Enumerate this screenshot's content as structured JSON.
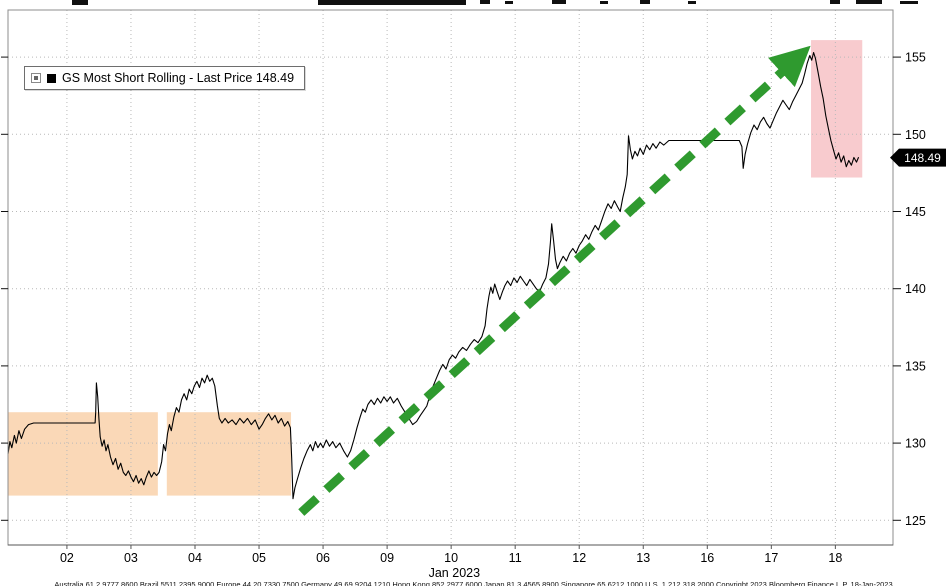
{
  "legend": {
    "text": "GS Most Short Rolling - Last Price 148.49",
    "swatch_color": "#000000"
  },
  "footer": {
    "text": "Australia 61 2 9777 8600 Brazil 5511 2395 9000 Europe 44 20 7330 7500 Germany 49 69 9204 1210 Hong Kong 852 2977 6000 Japan 81 3 4565 8900 Singapore 65 6212 1000 U.S. 1 212 318 2000 Copyright 2023 Bloomberg Finance L.P. 18-Jan-2023"
  },
  "chart_data": {
    "type": "line",
    "title": "GS Most Short Rolling - Last Price 148.49",
    "last_price": 148.49,
    "x_axis": {
      "label": "Jan 2023",
      "ticks": [
        "02",
        "03",
        "04",
        "05",
        "06",
        "09",
        "10",
        "11",
        "12",
        "13",
        "16",
        "17",
        "18"
      ]
    },
    "y_axis": {
      "side": "right",
      "ticks": [
        125,
        130,
        135,
        140,
        145,
        150,
        155
      ]
    },
    "layout": {
      "xlim": [
        -0.92,
        12.9
      ],
      "ylim": [
        123.4,
        158.05
      ],
      "grid": "dotted",
      "legend_position": "top-left",
      "background": "#ffffff"
    },
    "series": [
      {
        "name": "GS Most Short Rolling",
        "color": "#000000",
        "points": [
          [
            -0.92,
            129.3
          ],
          [
            -0.89,
            130.1
          ],
          [
            -0.86,
            129.7
          ],
          [
            -0.82,
            130.5
          ],
          [
            -0.79,
            130.0
          ],
          [
            -0.75,
            130.8
          ],
          [
            -0.71,
            130.3
          ],
          [
            -0.66,
            130.9
          ],
          [
            -0.6,
            131.2
          ],
          [
            -0.52,
            131.3
          ],
          [
            0.44,
            131.3
          ],
          [
            0.45,
            132.0
          ],
          [
            0.46,
            133.9
          ],
          [
            0.48,
            133.0
          ],
          [
            0.5,
            131.6
          ],
          [
            0.52,
            130.4
          ],
          [
            0.55,
            129.8
          ],
          [
            0.58,
            130.2
          ],
          [
            0.61,
            129.5
          ],
          [
            0.64,
            129.9
          ],
          [
            0.68,
            129.1
          ],
          [
            0.72,
            128.6
          ],
          [
            0.76,
            129.0
          ],
          [
            0.8,
            128.3
          ],
          [
            0.84,
            128.7
          ],
          [
            0.88,
            128.1
          ],
          [
            0.92,
            127.9
          ],
          [
            0.96,
            128.2
          ],
          [
            1.0,
            127.8
          ],
          [
            1.04,
            127.5
          ],
          [
            1.08,
            127.9
          ],
          [
            1.12,
            127.4
          ],
          [
            1.16,
            127.7
          ],
          [
            1.2,
            127.3
          ],
          [
            1.24,
            127.8
          ],
          [
            1.28,
            128.2
          ],
          [
            1.32,
            127.8
          ],
          [
            1.36,
            128.1
          ],
          [
            1.4,
            127.9
          ],
          [
            1.44,
            128.1
          ],
          [
            1.48,
            128.8
          ],
          [
            1.51,
            129.9
          ],
          [
            1.54,
            129.5
          ],
          [
            1.57,
            130.6
          ],
          [
            1.6,
            131.2
          ],
          [
            1.63,
            130.8
          ],
          [
            1.67,
            131.7
          ],
          [
            1.71,
            132.3
          ],
          [
            1.75,
            132.0
          ],
          [
            1.79,
            132.8
          ],
          [
            1.83,
            133.2
          ],
          [
            1.87,
            132.8
          ],
          [
            1.91,
            133.5
          ],
          [
            1.95,
            133.2
          ],
          [
            1.99,
            133.7
          ],
          [
            2.03,
            134.0
          ],
          [
            2.07,
            133.6
          ],
          [
            2.11,
            134.2
          ],
          [
            2.15,
            133.9
          ],
          [
            2.19,
            134.4
          ],
          [
            2.23,
            134.0
          ],
          [
            2.27,
            134.2
          ],
          [
            2.31,
            133.7
          ],
          [
            2.35,
            132.4
          ],
          [
            2.38,
            131.6
          ],
          [
            2.42,
            131.3
          ],
          [
            2.47,
            131.6
          ],
          [
            2.52,
            131.3
          ],
          [
            2.58,
            131.5
          ],
          [
            2.64,
            131.2
          ],
          [
            2.7,
            131.6
          ],
          [
            2.76,
            131.3
          ],
          [
            2.82,
            131.6
          ],
          [
            2.88,
            131.2
          ],
          [
            2.94,
            131.5
          ],
          [
            3.0,
            130.9
          ],
          [
            3.05,
            131.2
          ],
          [
            3.1,
            131.6
          ],
          [
            3.15,
            131.9
          ],
          [
            3.2,
            131.5
          ],
          [
            3.25,
            131.8
          ],
          [
            3.3,
            131.3
          ],
          [
            3.35,
            131.6
          ],
          [
            3.4,
            131.1
          ],
          [
            3.45,
            131.4
          ],
          [
            3.49,
            131.0
          ],
          [
            3.51,
            129.0
          ],
          [
            3.53,
            126.4
          ],
          [
            3.56,
            127.1
          ],
          [
            3.6,
            127.7
          ],
          [
            3.65,
            128.4
          ],
          [
            3.7,
            129.0
          ],
          [
            3.75,
            129.5
          ],
          [
            3.8,
            129.9
          ],
          [
            3.84,
            129.5
          ],
          [
            3.88,
            130.1
          ],
          [
            3.92,
            129.7
          ],
          [
            3.96,
            130.0
          ],
          [
            4.0,
            129.7
          ],
          [
            4.05,
            130.2
          ],
          [
            4.1,
            129.8
          ],
          [
            4.15,
            130.1
          ],
          [
            4.2,
            129.7
          ],
          [
            4.26,
            130.0
          ],
          [
            4.32,
            129.5
          ],
          [
            4.38,
            129.1
          ],
          [
            4.43,
            129.5
          ],
          [
            4.48,
            130.2
          ],
          [
            4.53,
            131.0
          ],
          [
            4.58,
            131.7
          ],
          [
            4.62,
            132.2
          ],
          [
            4.66,
            132.0
          ],
          [
            4.7,
            132.5
          ],
          [
            4.75,
            132.8
          ],
          [
            4.8,
            132.5
          ],
          [
            4.85,
            132.9
          ],
          [
            4.9,
            132.6
          ],
          [
            4.95,
            133.0
          ],
          [
            5.0,
            132.7
          ],
          [
            5.05,
            133.0
          ],
          [
            5.1,
            132.6
          ],
          [
            5.16,
            132.9
          ],
          [
            5.22,
            132.4
          ],
          [
            5.28,
            132.0
          ],
          [
            5.34,
            131.6
          ],
          [
            5.4,
            131.2
          ],
          [
            5.46,
            131.4
          ],
          [
            5.52,
            131.8
          ],
          [
            5.57,
            132.1
          ],
          [
            5.62,
            132.4
          ],
          [
            5.67,
            133.1
          ],
          [
            5.72,
            133.7
          ],
          [
            5.77,
            134.2
          ],
          [
            5.82,
            134.7
          ],
          [
            5.87,
            135.1
          ],
          [
            5.92,
            134.8
          ],
          [
            5.97,
            135.4
          ],
          [
            6.02,
            135.7
          ],
          [
            6.07,
            135.5
          ],
          [
            6.12,
            135.9
          ],
          [
            6.18,
            136.2
          ],
          [
            6.24,
            136.0
          ],
          [
            6.3,
            136.4
          ],
          [
            6.36,
            136.7
          ],
          [
            6.42,
            136.5
          ],
          [
            6.48,
            136.9
          ],
          [
            6.53,
            137.6
          ],
          [
            6.56,
            138.7
          ],
          [
            6.59,
            139.5
          ],
          [
            6.62,
            140.1
          ],
          [
            6.65,
            139.7
          ],
          [
            6.68,
            140.3
          ],
          [
            6.72,
            139.8
          ],
          [
            6.76,
            139.3
          ],
          [
            6.8,
            139.8
          ],
          [
            6.84,
            140.2
          ],
          [
            6.88,
            140.5
          ],
          [
            6.93,
            140.2
          ],
          [
            6.98,
            140.7
          ],
          [
            7.03,
            140.4
          ],
          [
            7.08,
            140.8
          ],
          [
            7.13,
            140.5
          ],
          [
            7.18,
            140.2
          ],
          [
            7.23,
            140.6
          ],
          [
            7.28,
            140.3
          ],
          [
            7.33,
            140.0
          ],
          [
            7.38,
            139.8
          ],
          [
            7.43,
            140.3
          ],
          [
            7.48,
            140.7
          ],
          [
            7.52,
            141.6
          ],
          [
            7.55,
            143.0
          ],
          [
            7.57,
            144.2
          ],
          [
            7.6,
            143.1
          ],
          [
            7.63,
            141.9
          ],
          [
            7.66,
            141.3
          ],
          [
            7.7,
            141.7
          ],
          [
            7.75,
            142.1
          ],
          [
            7.8,
            141.8
          ],
          [
            7.85,
            142.3
          ],
          [
            7.9,
            142.6
          ],
          [
            7.95,
            142.3
          ],
          [
            8.0,
            142.8
          ],
          [
            8.05,
            143.1
          ],
          [
            8.1,
            143.5
          ],
          [
            8.15,
            143.2
          ],
          [
            8.2,
            143.7
          ],
          [
            8.25,
            144.1
          ],
          [
            8.3,
            143.8
          ],
          [
            8.35,
            144.4
          ],
          [
            8.4,
            145.0
          ],
          [
            8.45,
            145.5
          ],
          [
            8.5,
            145.2
          ],
          [
            8.55,
            145.7
          ],
          [
            8.6,
            145.3
          ],
          [
            8.64,
            145.0
          ],
          [
            8.68,
            145.9
          ],
          [
            8.72,
            146.6
          ],
          [
            8.75,
            147.4
          ],
          [
            8.77,
            149.9
          ],
          [
            8.8,
            149.0
          ],
          [
            8.83,
            148.4
          ],
          [
            8.87,
            148.9
          ],
          [
            8.91,
            148.6
          ],
          [
            8.95,
            149.1
          ],
          [
            9.0,
            148.7
          ],
          [
            9.05,
            149.3
          ],
          [
            9.1,
            149.0
          ],
          [
            9.15,
            149.4
          ],
          [
            9.2,
            149.1
          ],
          [
            9.26,
            149.5
          ],
          [
            9.32,
            149.3
          ],
          [
            9.4,
            149.6
          ],
          [
            10.5,
            149.6
          ],
          [
            10.54,
            149.2
          ],
          [
            10.56,
            147.8
          ],
          [
            10.59,
            148.7
          ],
          [
            10.63,
            149.4
          ],
          [
            10.68,
            150.1
          ],
          [
            10.73,
            150.6
          ],
          [
            10.78,
            150.3
          ],
          [
            10.83,
            150.8
          ],
          [
            10.88,
            151.1
          ],
          [
            10.93,
            150.7
          ],
          [
            10.98,
            150.4
          ],
          [
            11.03,
            150.9
          ],
          [
            11.08,
            151.4
          ],
          [
            11.13,
            151.8
          ],
          [
            11.18,
            152.2
          ],
          [
            11.23,
            151.9
          ],
          [
            11.28,
            151.6
          ],
          [
            11.33,
            152.1
          ],
          [
            11.38,
            152.5
          ],
          [
            11.43,
            152.9
          ],
          [
            11.48,
            153.3
          ],
          [
            11.52,
            153.9
          ],
          [
            11.56,
            154.6
          ],
          [
            11.6,
            155.1
          ],
          [
            11.63,
            154.8
          ],
          [
            11.66,
            155.3
          ],
          [
            11.69,
            154.9
          ],
          [
            11.73,
            154.0
          ],
          [
            11.77,
            153.1
          ],
          [
            11.81,
            152.3
          ],
          [
            11.85,
            151.2
          ],
          [
            11.89,
            150.4
          ],
          [
            11.93,
            149.6
          ],
          [
            11.97,
            149.0
          ],
          [
            12.01,
            148.4
          ],
          [
            12.05,
            148.8
          ],
          [
            12.09,
            148.2
          ],
          [
            12.13,
            148.6
          ],
          [
            12.17,
            147.9
          ],
          [
            12.21,
            148.3
          ],
          [
            12.25,
            148.0
          ],
          [
            12.29,
            148.5
          ],
          [
            12.33,
            148.2
          ],
          [
            12.36,
            148.49
          ]
        ]
      }
    ],
    "annotations": {
      "arrow": {
        "name": "uptrend-arrow",
        "x1": 3.66,
        "y1": 125.5,
        "x2": 11.5,
        "y2": 155.3,
        "color": "#2f9a2f",
        "style": "dashed",
        "width": 9
      },
      "regions": [
        {
          "name": "orange-highlight-left",
          "x1": -0.92,
          "x2": 1.42,
          "y1": 126.6,
          "y2": 132.0,
          "color": "#f5b87c",
          "opacity": 0.55
        },
        {
          "name": "orange-highlight-right",
          "x1": 1.56,
          "x2": 3.5,
          "y1": 126.6,
          "y2": 132.0,
          "color": "#f5b87c",
          "opacity": 0.55
        },
        {
          "name": "pink-highlight-selloff",
          "x1": 11.62,
          "x2": 12.42,
          "y1": 147.2,
          "y2": 156.1,
          "color": "#f2979e",
          "opacity": 0.5
        }
      ]
    }
  }
}
